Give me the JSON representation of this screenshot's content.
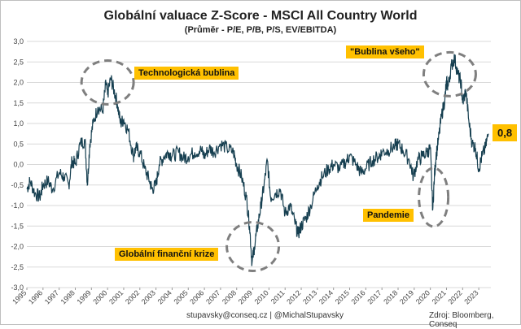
{
  "chart_data": {
    "type": "line",
    "title": "Globální valuace Z-Score - MSCI All Country World",
    "subtitle": "(Průměr - P/E, P/B, P/S, EV/EBITDA)",
    "xlabel": "",
    "ylabel": "",
    "ylim": [
      -3.0,
      3.0
    ],
    "y_ticks": [
      "-3,0",
      "-2,5",
      "-2,0",
      "-1,5",
      "-1,0",
      "-0,5",
      "0,0",
      "0,5",
      "1,0",
      "1,5",
      "2,0",
      "2,5",
      "3,0"
    ],
    "x_ticks": [
      "1995",
      "1996",
      "1997",
      "1998",
      "1999",
      "2000",
      "2001",
      "2002",
      "2003",
      "2004",
      "2005",
      "2006",
      "2007",
      "2008",
      "2009",
      "2010",
      "2011",
      "2012",
      "2013",
      "2014",
      "2015",
      "2016",
      "2017",
      "2018",
      "2019",
      "2020",
      "2021",
      "2022",
      "2023"
    ],
    "grid": "horizontal",
    "series": [
      {
        "color": "#163f50",
        "x": [
          1995.0,
          1995.2,
          1995.5,
          1995.8,
          1996.0,
          1996.3,
          1996.6,
          1997.0,
          1997.3,
          1997.6,
          1997.8,
          1998.0,
          1998.3,
          1998.6,
          1998.75,
          1998.9,
          1999.1,
          1999.4,
          1999.7,
          1999.9,
          2000.0,
          2000.2,
          2000.4,
          2000.6,
          2000.8,
          2001.0,
          2001.3,
          2001.6,
          2001.75,
          2002.0,
          2002.3,
          2002.6,
          2002.75,
          2003.0,
          2003.2,
          2003.5,
          2003.8,
          2004.0,
          2004.4,
          2004.7,
          2005.0,
          2005.4,
          2005.8,
          2006.0,
          2006.3,
          2006.6,
          2007.0,
          2007.4,
          2007.8,
          2008.0,
          2008.3,
          2008.6,
          2008.8,
          2008.95,
          2009.1,
          2009.3,
          2009.5,
          2009.7,
          2009.9,
          2010.1,
          2010.4,
          2010.7,
          2011.0,
          2011.3,
          2011.6,
          2011.8,
          2012.0,
          2012.3,
          2012.6,
          2013.0,
          2013.3,
          2013.7,
          2014.0,
          2014.4,
          2014.8,
          2015.0,
          2015.4,
          2015.7,
          2016.0,
          2016.4,
          2016.8,
          2017.0,
          2017.4,
          2017.8,
          2018.0,
          2018.3,
          2018.7,
          2018.95,
          2019.2,
          2019.5,
          2019.8,
          2020.0,
          2020.15,
          2020.25,
          2020.35,
          2020.5,
          2020.7,
          2020.9,
          2021.0,
          2021.1,
          2021.3,
          2021.5,
          2021.7,
          2021.9,
          2022.0,
          2022.2,
          2022.4,
          2022.6,
          2022.8,
          2023.0,
          2023.2,
          2023.4,
          2023.6
        ],
        "values": [
          -0.6,
          -0.4,
          -0.7,
          -0.8,
          -0.5,
          -0.4,
          -0.6,
          -0.2,
          -0.3,
          -0.5,
          0.1,
          0.0,
          0.5,
          0.6,
          -0.5,
          0.5,
          1.0,
          1.4,
          1.3,
          2.0,
          1.7,
          2.1,
          1.8,
          1.5,
          1.0,
          1.1,
          0.8,
          0.2,
          0.4,
          0.3,
          -0.1,
          -0.4,
          -0.6,
          -0.5,
          0.0,
          0.2,
          0.3,
          0.2,
          0.3,
          0.15,
          0.2,
          0.3,
          0.35,
          0.2,
          0.4,
          0.3,
          0.5,
          0.4,
          0.3,
          0.0,
          -0.3,
          -0.8,
          -1.5,
          -2.4,
          -2.0,
          -1.5,
          -1.0,
          -0.5,
          0.1,
          -0.8,
          -0.7,
          -0.6,
          -1.2,
          -1.0,
          -1.4,
          -1.7,
          -1.5,
          -1.3,
          -1.0,
          -0.5,
          -0.3,
          -0.1,
          0.0,
          -0.1,
          0.1,
          0.2,
          0.0,
          -0.2,
          -0.1,
          0.1,
          0.2,
          0.3,
          0.35,
          0.45,
          0.5,
          0.35,
          0.1,
          -0.3,
          0.1,
          0.2,
          0.3,
          0.4,
          -1.1,
          -0.3,
          0.2,
          0.6,
          1.2,
          1.6,
          2.0,
          1.9,
          2.4,
          2.6,
          2.2,
          2.0,
          1.5,
          1.8,
          1.0,
          0.5,
          0.4,
          -0.1,
          0.2,
          0.4,
          0.75
        ]
      }
    ],
    "annotations": [
      {
        "text": "Technologická bublina"
      },
      {
        "text": "\"Bublina všeho\""
      },
      {
        "text": "Globální finanční krize"
      },
      {
        "text": "Pandemie"
      }
    ],
    "last_value": "0,8"
  },
  "footer": {
    "contact": "stupavsky@conseq.cz  |  @MichalStupavsky",
    "source": "Zdroj: Bloomberg, Conseq"
  }
}
